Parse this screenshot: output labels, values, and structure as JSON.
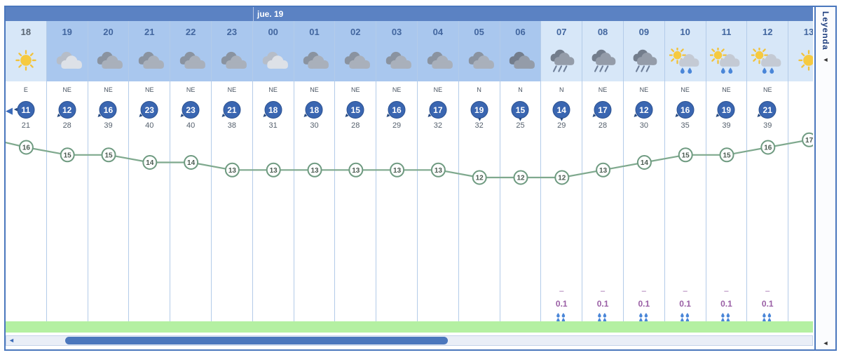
{
  "header": {
    "day_label": "jue. 19"
  },
  "legend": {
    "label": "Leyenda",
    "arrow": "◄",
    "bottom_arrow": "◄"
  },
  "scrollbar": {
    "left_arrow": "◄",
    "table_left_arrow": "◀"
  },
  "precip_dash_label": "–",
  "columns": [
    {
      "hour": "18",
      "shade": "day",
      "current": true,
      "icon": "sun",
      "wind_dir": "E",
      "wind_speed": 11,
      "wind_gust": 21,
      "temp": 16,
      "precip": ""
    },
    {
      "hour": "19",
      "shade": "night",
      "current": false,
      "icon": "cloud-light",
      "wind_dir": "NE",
      "wind_speed": 12,
      "wind_gust": 28,
      "temp": 15,
      "precip": ""
    },
    {
      "hour": "20",
      "shade": "night",
      "current": false,
      "icon": "cloud",
      "wind_dir": "NE",
      "wind_speed": 16,
      "wind_gust": 39,
      "temp": 15,
      "precip": ""
    },
    {
      "hour": "21",
      "shade": "night",
      "current": false,
      "icon": "cloud",
      "wind_dir": "NE",
      "wind_speed": 23,
      "wind_gust": 40,
      "temp": 14,
      "precip": ""
    },
    {
      "hour": "22",
      "shade": "night",
      "current": false,
      "icon": "cloud",
      "wind_dir": "NE",
      "wind_speed": 23,
      "wind_gust": 40,
      "temp": 14,
      "precip": ""
    },
    {
      "hour": "23",
      "shade": "night",
      "current": false,
      "icon": "cloud",
      "wind_dir": "NE",
      "wind_speed": 21,
      "wind_gust": 38,
      "temp": 13,
      "precip": ""
    },
    {
      "hour": "00",
      "shade": "night",
      "current": false,
      "icon": "cloud-light",
      "wind_dir": "NE",
      "wind_speed": 18,
      "wind_gust": 31,
      "temp": 13,
      "precip": ""
    },
    {
      "hour": "01",
      "shade": "night",
      "current": false,
      "icon": "cloud",
      "wind_dir": "NE",
      "wind_speed": 18,
      "wind_gust": 30,
      "temp": 13,
      "precip": ""
    },
    {
      "hour": "02",
      "shade": "night",
      "current": false,
      "icon": "cloud",
      "wind_dir": "NE",
      "wind_speed": 15,
      "wind_gust": 28,
      "temp": 13,
      "precip": ""
    },
    {
      "hour": "03",
      "shade": "night",
      "current": false,
      "icon": "cloud",
      "wind_dir": "NE",
      "wind_speed": 16,
      "wind_gust": 29,
      "temp": 13,
      "precip": ""
    },
    {
      "hour": "04",
      "shade": "night",
      "current": false,
      "icon": "cloud",
      "wind_dir": "NE",
      "wind_speed": 17,
      "wind_gust": 32,
      "temp": 13,
      "precip": ""
    },
    {
      "hour": "05",
      "shade": "night",
      "current": false,
      "icon": "cloud",
      "wind_dir": "N",
      "wind_speed": 19,
      "wind_gust": 32,
      "temp": 12,
      "precip": ""
    },
    {
      "hour": "06",
      "shade": "night",
      "current": false,
      "icon": "cloud-dark",
      "wind_dir": "N",
      "wind_speed": 15,
      "wind_gust": 25,
      "temp": 12,
      "precip": ""
    },
    {
      "hour": "07",
      "shade": "day",
      "current": false,
      "icon": "rain",
      "wind_dir": "N",
      "wind_speed": 14,
      "wind_gust": 29,
      "temp": 12,
      "precip": "0.1"
    },
    {
      "hour": "08",
      "shade": "day",
      "current": false,
      "icon": "rain",
      "wind_dir": "NE",
      "wind_speed": 17,
      "wind_gust": 28,
      "temp": 13,
      "precip": "0.1"
    },
    {
      "hour": "09",
      "shade": "day",
      "current": false,
      "icon": "rain",
      "wind_dir": "NE",
      "wind_speed": 12,
      "wind_gust": 30,
      "temp": 14,
      "precip": "0.1"
    },
    {
      "hour": "10",
      "shade": "day",
      "current": false,
      "icon": "sun-rain",
      "wind_dir": "NE",
      "wind_speed": 16,
      "wind_gust": 35,
      "temp": 15,
      "precip": "0.1"
    },
    {
      "hour": "11",
      "shade": "day",
      "current": false,
      "icon": "sun-rain",
      "wind_dir": "NE",
      "wind_speed": 19,
      "wind_gust": 39,
      "temp": 15,
      "precip": "0.1"
    },
    {
      "hour": "12",
      "shade": "day",
      "current": false,
      "icon": "sun-rain",
      "wind_dir": "NE",
      "wind_speed": 21,
      "wind_gust": 39,
      "temp": 16,
      "precip": "0.1"
    },
    {
      "hour": "13",
      "shade": "day",
      "current": false,
      "icon": "sun",
      "wind_dir": "",
      "wind_speed": "",
      "wind_gust": "",
      "temp": 17,
      "precip": ""
    }
  ],
  "chart_data": {
    "type": "line",
    "title": "",
    "x_hours": [
      "18",
      "19",
      "20",
      "21",
      "22",
      "23",
      "00",
      "01",
      "02",
      "03",
      "04",
      "05",
      "06",
      "07",
      "08",
      "09",
      "10",
      "11",
      "12",
      "13"
    ],
    "series": [
      {
        "name": "temperature_c",
        "values": [
          16,
          15,
          15,
          14,
          14,
          13,
          13,
          13,
          13,
          13,
          13,
          12,
          12,
          12,
          13,
          14,
          15,
          15,
          16,
          17
        ]
      },
      {
        "name": "wind_speed_kmh",
        "values": [
          11,
          12,
          16,
          23,
          23,
          21,
          18,
          18,
          15,
          16,
          17,
          19,
          15,
          14,
          17,
          12,
          16,
          19,
          21,
          null
        ]
      },
      {
        "name": "wind_gust_kmh",
        "values": [
          21,
          28,
          39,
          40,
          40,
          38,
          31,
          30,
          28,
          29,
          32,
          32,
          25,
          29,
          28,
          30,
          35,
          39,
          39,
          null
        ]
      },
      {
        "name": "precipitation_mm",
        "values": [
          null,
          null,
          null,
          null,
          null,
          null,
          null,
          null,
          null,
          null,
          null,
          null,
          null,
          0.1,
          0.1,
          0.1,
          0.1,
          0.1,
          0.1,
          null
        ]
      }
    ],
    "wind_directions": [
      "E",
      "NE",
      "NE",
      "NE",
      "NE",
      "NE",
      "NE",
      "NE",
      "NE",
      "NE",
      "NE",
      "N",
      "N",
      "N",
      "NE",
      "NE",
      "NE",
      "NE",
      "NE",
      null
    ],
    "ylim_temperature": [
      12,
      17
    ],
    "grid": "vertical-columns",
    "legend_position": "none",
    "accent_colors": {
      "header_blue": "#5b82c3",
      "night_shade": "#a9c7ee",
      "day_shade": "#d7e7f8",
      "temp_line_green": "#7fa98e",
      "wind_badge_blue": "#3a66b1",
      "precip_purple": "#9a5fa5",
      "ground_green": "#b4f0a2"
    }
  }
}
